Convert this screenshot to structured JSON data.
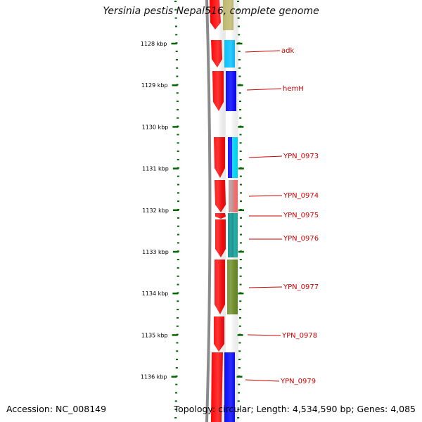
{
  "title": "Yersinia pestis Nepal516, complete genome",
  "footer": {
    "accession": "Accession: NC_008149",
    "topology": "Topology: circular; Length: 4,534,590 bp; Genes: 4,085"
  },
  "axis": {
    "unit": "kbp",
    "ticks": [
      "1128 kbp",
      "1129 kbp",
      "1130 kbp",
      "1131 kbp",
      "1132 kbp",
      "1133 kbp",
      "1134 kbp",
      "1135 kbp",
      "1136 kbp"
    ]
  },
  "gene_labels": [
    "adk",
    "hemH",
    "YPN_0973",
    "YPN_0974",
    "YPN_0975",
    "YPN_0976",
    "YPN_0977",
    "YPN_0978",
    "YPN_0979"
  ],
  "colors": {
    "cds": "#ff0000",
    "axis_tick": "#006600",
    "backbone": "#888888",
    "label": "#cc0000",
    "feature_olive": "#bdb76b",
    "feature_skyblue": "#00bfff",
    "feature_blue": "#0000ff",
    "feature_cyan": "#00e0ff",
    "feature_rosybrown": "#bc8f8f",
    "feature_salmon": "#ff7070",
    "feature_darkcyan": "#008b8b",
    "feature_teal": "#20b2aa",
    "feature_olivedrab": "#6b8e23"
  }
}
